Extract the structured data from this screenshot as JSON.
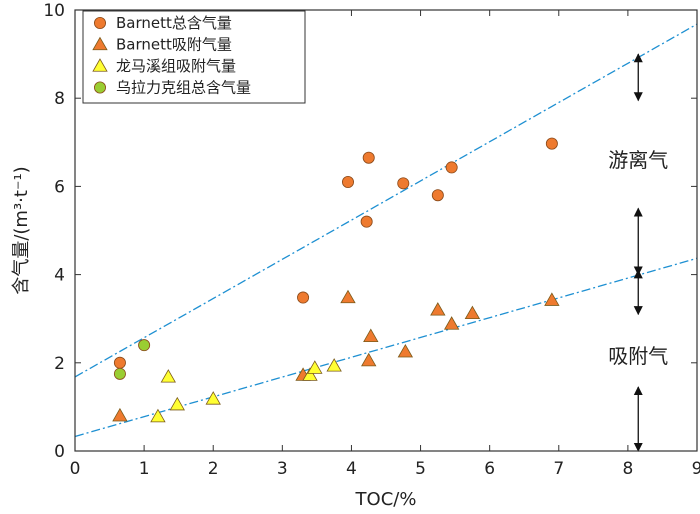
{
  "chart_data": {
    "type": "scatter",
    "xlabel": "TOC/%",
    "ylabel": "含气量/(m³·t⁻¹)",
    "xlim": [
      0,
      9
    ],
    "ylim": [
      0,
      10
    ],
    "xticks": [
      0,
      1,
      2,
      3,
      4,
      5,
      6,
      7,
      8,
      9
    ],
    "yticks": [
      0,
      2,
      4,
      6,
      8,
      10
    ],
    "grid": false,
    "legend_position": "top-left",
    "series": [
      {
        "name": "Barnett总含气量",
        "marker": "circle",
        "color": "#ee7a2f",
        "points": [
          [
            0.65,
            2.0
          ],
          [
            3.3,
            3.48
          ],
          [
            3.95,
            6.1
          ],
          [
            4.22,
            5.2
          ],
          [
            4.25,
            6.65
          ],
          [
            4.75,
            6.07
          ],
          [
            5.25,
            5.8
          ],
          [
            5.45,
            6.43
          ],
          [
            6.9,
            6.97
          ]
        ]
      },
      {
        "name": "Barnett吸附气量",
        "marker": "triangle",
        "color": "#ee7a2f",
        "points": [
          [
            0.65,
            0.8
          ],
          [
            3.3,
            1.72
          ],
          [
            3.95,
            3.48
          ],
          [
            4.25,
            2.05
          ],
          [
            4.28,
            2.6
          ],
          [
            4.78,
            2.25
          ],
          [
            5.25,
            3.2
          ],
          [
            5.45,
            2.88
          ],
          [
            5.75,
            3.12
          ],
          [
            6.9,
            3.42
          ]
        ]
      },
      {
        "name": "龙马溪组吸附气量",
        "marker": "triangle",
        "color": "#ffff33",
        "points": [
          [
            1.2,
            0.78
          ],
          [
            1.35,
            1.68
          ],
          [
            1.48,
            1.05
          ],
          [
            2.0,
            1.18
          ],
          [
            3.4,
            1.72
          ],
          [
            3.47,
            1.88
          ],
          [
            3.75,
            1.93
          ]
        ]
      },
      {
        "name": "乌拉力克组总含气量",
        "marker": "circle",
        "color": "#9acd32",
        "points": [
          [
            0.65,
            1.75
          ],
          [
            1.0,
            2.4
          ]
        ]
      }
    ],
    "trendlines": [
      {
        "label": "游离气",
        "from": [
          0,
          1.68
        ],
        "to": [
          9,
          9.68
        ],
        "color": "#1e90d2"
      },
      {
        "label": "吸附气",
        "from": [
          0,
          0.33
        ],
        "to": [
          9,
          4.37
        ],
        "color": "#1e90d2"
      }
    ],
    "annotations": [
      {
        "text": "游离气",
        "x": 8.15,
        "y": 6.6
      },
      {
        "text": "吸附气",
        "x": 8.15,
        "y": 2.15
      }
    ],
    "double_arrows": [
      {
        "x": 8.15,
        "y1": 7.95,
        "y2": 9.0
      },
      {
        "x": 8.15,
        "y1": 4.0,
        "y2": 5.5
      },
      {
        "x": 8.15,
        "y1": 3.1,
        "y2": 4.1
      },
      {
        "x": 8.15,
        "y1": 0.0,
        "y2": 1.45
      }
    ]
  }
}
